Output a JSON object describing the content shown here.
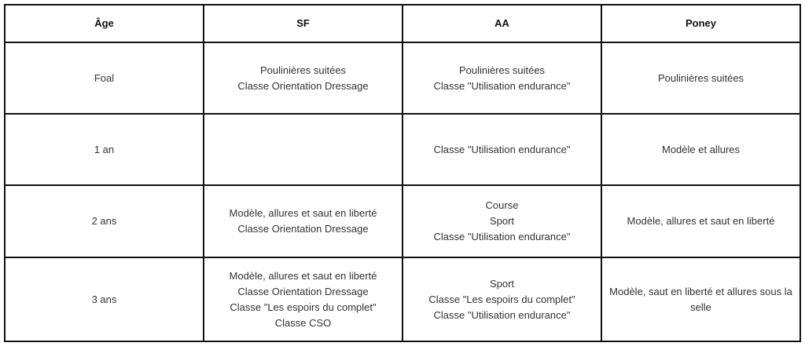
{
  "headers": [
    "Âge",
    "SF",
    "AA",
    "Poney"
  ],
  "rows": [
    {
      "age": "Foal",
      "sf": [
        "Poulinières suitées",
        "Classe Orientation Dressage"
      ],
      "aa": [
        "Poulinières suitées",
        "Classe \"Utilisation endurance\""
      ],
      "poney": [
        "Poulinières suitées"
      ]
    },
    {
      "age": "1 an",
      "sf": [],
      "aa": [
        "Classe \"Utilisation endurance\""
      ],
      "poney": [
        "Modèle et allures"
      ]
    },
    {
      "age": "2 ans",
      "sf": [
        "Modèle, allures et saut en liberté",
        "Classe Orientation Dressage"
      ],
      "aa": [
        "Course",
        "Sport",
        "Classe \"Utilisation endurance\""
      ],
      "poney": [
        "Modèle, allures et saut en liberté"
      ]
    },
    {
      "age": "3 ans",
      "sf": [
        "Modèle, allures et saut en liberté",
        "Classe Orientation Dressage",
        "Classe \"Les espoirs du complet\"",
        "Classe CSO"
      ],
      "aa": [
        "Sport",
        "Classe \"Les espoirs du complet\"",
        "Classe \"Utilisation endurance\""
      ],
      "poney": [
        "Modèle, saut en liberté et allures sous la selle"
      ]
    }
  ]
}
